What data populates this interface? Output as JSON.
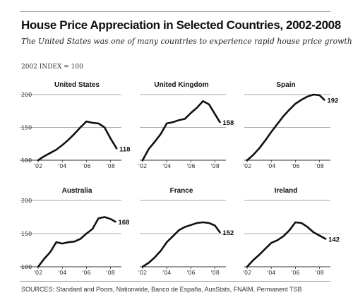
{
  "header": {
    "title": "House Price Appreciation in Selected Countries, 2002-2008",
    "subtitle": "The United States was one of many countries to experience rapid house price growth",
    "index_note": "2002 INDEX = 100"
  },
  "footer": {
    "sources": "SOURCES: Standard and Poors, Nationwide, Banco de España, AusStats, FNAIM, Permanent TSB"
  },
  "chart_data": [
    {
      "type": "line",
      "title": "United States",
      "ylim": [
        100,
        200
      ],
      "yticks": [
        "100",
        "150",
        "200"
      ],
      "xticks": [
        "'02",
        "'04",
        "'06",
        "'08"
      ],
      "xlim": [
        2002,
        2008.9
      ],
      "end_label": "118",
      "series": [
        {
          "x": [
            2002.0,
            2002.5,
            2003.0,
            2003.5,
            2004.0,
            2004.5,
            2005.0,
            2005.5,
            2006.0,
            2006.5,
            2007.0,
            2007.5,
            2008.0,
            2008.5
          ],
          "values": [
            100,
            106,
            111,
            116,
            123,
            131,
            140,
            150,
            159,
            157,
            156,
            150,
            133,
            118
          ]
        }
      ]
    },
    {
      "type": "line",
      "title": "United Kingdom",
      "ylim": [
        100,
        200
      ],
      "yticks": [],
      "xticks": [
        "'02",
        "'04",
        "'06",
        "'08"
      ],
      "xlim": [
        2002,
        2008.9
      ],
      "end_label": "158",
      "series": [
        {
          "x": [
            2002.0,
            2002.5,
            2003.0,
            2003.5,
            2004.0,
            2004.5,
            2005.0,
            2005.5,
            2006.0,
            2006.5,
            2007.0,
            2007.5,
            2008.0,
            2008.4
          ],
          "values": [
            100,
            117,
            128,
            140,
            156,
            158,
            161,
            163,
            172,
            180,
            190,
            185,
            170,
            158
          ]
        }
      ]
    },
    {
      "type": "line",
      "title": "Spain",
      "ylim": [
        100,
        200
      ],
      "yticks": [],
      "xticks": [
        "'02",
        "'04",
        "'06",
        "'08"
      ],
      "xlim": [
        2002,
        2008.9
      ],
      "end_label": "192",
      "series": [
        {
          "x": [
            2002.0,
            2002.5,
            2003.0,
            2003.5,
            2004.0,
            2004.5,
            2005.0,
            2005.5,
            2006.0,
            2006.5,
            2007.0,
            2007.5,
            2008.0,
            2008.4
          ],
          "values": [
            100,
            108,
            118,
            130,
            143,
            155,
            167,
            177,
            186,
            192,
            197,
            200,
            199,
            192
          ]
        }
      ]
    },
    {
      "type": "line",
      "title": "Australia",
      "ylim": [
        100,
        200
      ],
      "yticks": [
        "100",
        "150",
        "200"
      ],
      "xticks": [
        "'02",
        "'04",
        "'06",
        "'08"
      ],
      "xlim": [
        2002,
        2008.9
      ],
      "end_label": "168",
      "series": [
        {
          "x": [
            2002.0,
            2002.5,
            2003.0,
            2003.5,
            2004.0,
            2004.5,
            2005.0,
            2005.5,
            2006.0,
            2006.5,
            2007.0,
            2007.5,
            2008.0,
            2008.4
          ],
          "values": [
            100,
            112,
            122,
            137,
            135,
            137,
            138,
            142,
            150,
            157,
            173,
            175,
            172,
            168
          ]
        }
      ]
    },
    {
      "type": "line",
      "title": "France",
      "ylim": [
        100,
        200
      ],
      "yticks": [],
      "xticks": [
        "'02",
        "'04",
        "'06",
        "'08"
      ],
      "xlim": [
        2002,
        2008.9
      ],
      "end_label": "152",
      "series": [
        {
          "x": [
            2002.0,
            2002.5,
            2003.0,
            2003.5,
            2004.0,
            2004.5,
            2005.0,
            2005.5,
            2006.0,
            2006.5,
            2007.0,
            2007.5,
            2008.0,
            2008.4
          ],
          "values": [
            100,
            106,
            114,
            124,
            137,
            146,
            155,
            160,
            163,
            166,
            167,
            166,
            162,
            152
          ]
        }
      ]
    },
    {
      "type": "line",
      "title": "Ireland",
      "ylim": [
        100,
        200
      ],
      "yticks": [],
      "xticks": [
        "'02",
        "'04",
        "'06",
        "'08"
      ],
      "xlim": [
        2002,
        2008.9
      ],
      "end_label": "142",
      "series": [
        {
          "x": [
            2002.0,
            2002.5,
            2003.0,
            2003.5,
            2004.0,
            2004.5,
            2005.0,
            2005.5,
            2006.0,
            2006.5,
            2007.0,
            2007.5,
            2008.0,
            2008.5
          ],
          "values": [
            100,
            110,
            118,
            127,
            136,
            140,
            146,
            155,
            167,
            166,
            160,
            152,
            147,
            142
          ]
        }
      ]
    }
  ]
}
